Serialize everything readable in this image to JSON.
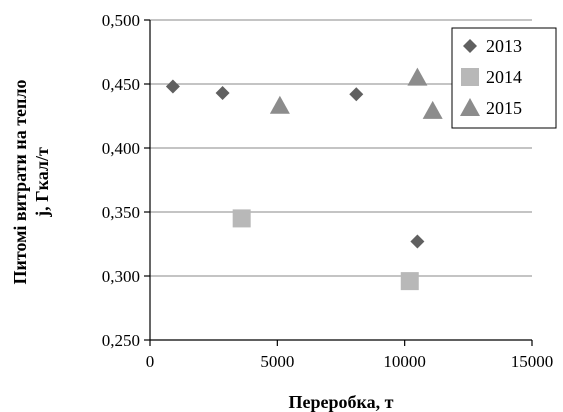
{
  "chart_data": {
    "type": "scatter",
    "xlabel": "Переробка, т",
    "ylabel": [
      "Питомі витрати на тепло",
      "j, Гкал/т"
    ],
    "xlim": [
      0,
      15000
    ],
    "ylim": [
      0.25,
      0.5
    ],
    "x_ticks": [
      0,
      5000,
      10000,
      15000
    ],
    "x_tick_labels": [
      "0",
      "5000",
      "10000",
      "15000"
    ],
    "y_ticks": [
      0.25,
      0.3,
      0.35,
      0.4,
      0.45,
      0.5
    ],
    "y_tick_labels": [
      "0,250",
      "0,300",
      "0,350",
      "0,400",
      "0,450",
      "0,500"
    ],
    "grid": "horizontal",
    "legend_position": "top-right",
    "series": [
      {
        "name": "2013",
        "marker": "diamond",
        "color": "#606060",
        "points": [
          [
            900,
            0.448
          ],
          [
            2850,
            0.443
          ],
          [
            8100,
            0.442
          ],
          [
            10500,
            0.327
          ]
        ]
      },
      {
        "name": "2014",
        "marker": "square",
        "color": "#b8b8b8",
        "points": [
          [
            3600,
            0.345
          ],
          [
            10200,
            0.296
          ]
        ]
      },
      {
        "name": "2015",
        "marker": "triangle",
        "color": "#8c8c8c",
        "points": [
          [
            5100,
            0.433
          ],
          [
            10500,
            0.455
          ],
          [
            11100,
            0.429
          ]
        ]
      }
    ]
  }
}
